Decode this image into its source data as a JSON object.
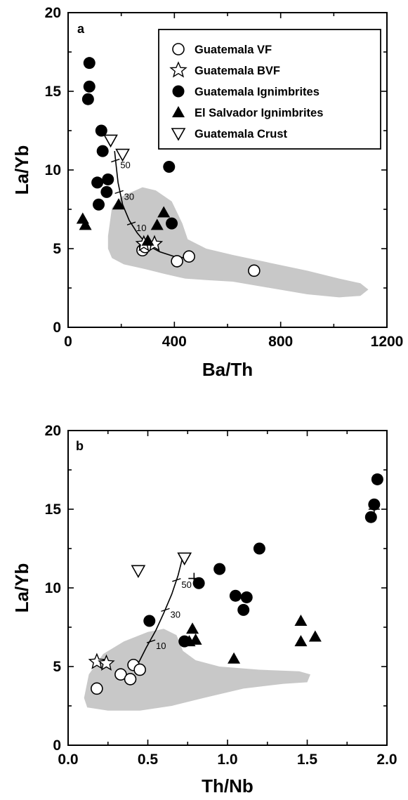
{
  "chart_data": [
    {
      "type": "scatter",
      "panel_label": "a",
      "xlabel": "Ba/Th",
      "ylabel": "La/Yb",
      "xlim": [
        0,
        1200
      ],
      "ylim": [
        0,
        20
      ],
      "xticks": [
        0,
        400,
        800,
        1200
      ],
      "xtick_labels": [
        "0",
        "400",
        "800",
        "1200"
      ],
      "yticks": [
        0,
        5,
        10,
        15,
        20
      ],
      "ytick_labels": [
        "0",
        "5",
        "10",
        "15",
        "20"
      ],
      "legend_position": "top-right",
      "legend": [
        {
          "marker": "open-circle",
          "label": "Guatemala VF"
        },
        {
          "marker": "open-star",
          "label": "Guatemala BVF"
        },
        {
          "marker": "filled-circle",
          "label": "Guatemala Ignimbrites"
        },
        {
          "marker": "filled-triangle",
          "label": "El Salvador Ignimbrites"
        },
        {
          "marker": "open-triangle-down",
          "label": "Guatemala Crust"
        }
      ],
      "series": [
        {
          "name": "Guatemala VF",
          "marker": "open-circle",
          "points": [
            [
              280,
              4.9
            ],
            [
              290,
              5.1
            ],
            [
              410,
              4.2
            ],
            [
              455,
              4.5
            ],
            [
              700,
              3.6
            ]
          ]
        },
        {
          "name": "Guatemala BVF",
          "marker": "open-star",
          "points": [
            [
              285,
              5.3
            ],
            [
              325,
              5.3
            ]
          ]
        },
        {
          "name": "Guatemala Ignimbrites",
          "marker": "filled-circle",
          "points": [
            [
              80,
              16.8
            ],
            [
              80,
              15.3
            ],
            [
              75,
              14.5
            ],
            [
              125,
              12.5
            ],
            [
              130,
              11.2
            ],
            [
              110,
              9.2
            ],
            [
              150,
              9.4
            ],
            [
              145,
              8.6
            ],
            [
              115,
              7.8
            ],
            [
              380,
              10.2
            ],
            [
              390,
              6.6
            ]
          ]
        },
        {
          "name": "El Salvador Ignimbrites",
          "marker": "filled-triangle",
          "points": [
            [
              55,
              6.9
            ],
            [
              65,
              6.5
            ],
            [
              190,
              7.8
            ],
            [
              300,
              5.5
            ],
            [
              335,
              6.5
            ],
            [
              360,
              7.3
            ]
          ]
        },
        {
          "name": "Guatemala Crust",
          "marker": "open-triangle-down",
          "points": [
            [
              160,
              11.9
            ],
            [
              205,
              11.0
            ]
          ]
        }
      ],
      "mixing_curve": [
        [
          175,
          11.2
        ],
        [
          180,
          10.4
        ],
        [
          188,
          9.2
        ],
        [
          205,
          7.8
        ],
        [
          230,
          6.8
        ],
        [
          260,
          6.0
        ],
        [
          300,
          5.2
        ],
        [
          345,
          4.8
        ],
        [
          400,
          4.5
        ],
        [
          445,
          4.4
        ]
      ],
      "mixing_ticks": [
        {
          "label": "50",
          "point": [
            178,
            10.6
          ]
        },
        {
          "label": "30",
          "point": [
            192,
            8.6
          ]
        },
        {
          "label": "10",
          "point": [
            238,
            6.6
          ]
        }
      ],
      "shaded_field": [
        [
          150,
          5.8
        ],
        [
          165,
          7.6
        ],
        [
          200,
          8.3
        ],
        [
          280,
          8.9
        ],
        [
          330,
          8.7
        ],
        [
          390,
          8.0
        ],
        [
          430,
          6.6
        ],
        [
          450,
          5.6
        ],
        [
          520,
          5.0
        ],
        [
          620,
          4.6
        ],
        [
          760,
          4.1
        ],
        [
          900,
          3.6
        ],
        [
          1020,
          3.1
        ],
        [
          1100,
          2.8
        ],
        [
          1130,
          2.4
        ],
        [
          1100,
          2.0
        ],
        [
          1020,
          1.9
        ],
        [
          900,
          2.1
        ],
        [
          760,
          2.5
        ],
        [
          620,
          2.9
        ],
        [
          520,
          3.0
        ],
        [
          440,
          3.1
        ],
        [
          360,
          3.4
        ],
        [
          290,
          3.7
        ],
        [
          210,
          4.0
        ],
        [
          165,
          4.4
        ],
        [
          150,
          5.0
        ]
      ]
    },
    {
      "type": "scatter",
      "panel_label": "b",
      "xlabel": "Th/Nb",
      "ylabel": "La/Yb",
      "xlim": [
        0,
        2.0
      ],
      "ylim": [
        0,
        20
      ],
      "xticks": [
        0,
        0.5,
        1.0,
        1.5,
        2.0
      ],
      "xtick_labels": [
        "0.0",
        "0.5",
        "1.0",
        "1.5",
        "2.0"
      ],
      "yticks": [
        0,
        5,
        10,
        15,
        20
      ],
      "ytick_labels": [
        "0",
        "5",
        "10",
        "15",
        "20"
      ],
      "series": [
        {
          "name": "Guatemala VF",
          "marker": "open-circle",
          "points": [
            [
              0.18,
              3.6
            ],
            [
              0.33,
              4.5
            ],
            [
              0.39,
              4.2
            ],
            [
              0.41,
              5.1
            ],
            [
              0.45,
              4.8
            ]
          ]
        },
        {
          "name": "Guatemala BVF",
          "marker": "open-star",
          "points": [
            [
              0.18,
              5.3
            ],
            [
              0.24,
              5.2
            ]
          ]
        },
        {
          "name": "Guatemala Ignimbrites",
          "marker": "filled-circle",
          "points": [
            [
              1.94,
              16.9
            ],
            [
              1.92,
              15.3
            ],
            [
              1.9,
              14.5
            ],
            [
              1.2,
              12.5
            ],
            [
              0.95,
              11.2
            ],
            [
              0.82,
              10.3
            ],
            [
              1.05,
              9.5
            ],
            [
              1.12,
              9.4
            ],
            [
              1.1,
              8.6
            ],
            [
              0.51,
              7.9
            ],
            [
              0.73,
              6.6
            ]
          ]
        },
        {
          "name": "El Salvador Ignimbrites",
          "marker": "filled-triangle",
          "points": [
            [
              0.78,
              7.4
            ],
            [
              0.76,
              6.6
            ],
            [
              0.8,
              6.7
            ],
            [
              1.04,
              5.5
            ],
            [
              1.46,
              7.9
            ],
            [
              1.46,
              6.6
            ],
            [
              1.55,
              6.9
            ]
          ]
        },
        {
          "name": "Guatemala Crust",
          "marker": "open-triangle-down",
          "points": [
            [
              0.44,
              11.1
            ],
            [
              0.73,
              11.9
            ]
          ]
        }
      ],
      "plus_markers": [
        [
          0.79,
          10.6
        ],
        [
          1.92,
          15.0
        ]
      ],
      "mixing_curve": [
        [
          0.44,
          5.2
        ],
        [
          0.49,
          6.2
        ],
        [
          0.55,
          7.3
        ],
        [
          0.6,
          8.4
        ],
        [
          0.65,
          9.6
        ],
        [
          0.69,
          10.8
        ],
        [
          0.72,
          12.0
        ]
      ],
      "mixing_ticks": [
        {
          "label": "50",
          "point": [
            0.68,
            10.5
          ]
        },
        {
          "label": "30",
          "point": [
            0.61,
            8.6
          ]
        },
        {
          "label": "10",
          "point": [
            0.52,
            6.6
          ]
        }
      ],
      "shaded_field": [
        [
          0.1,
          3.0
        ],
        [
          0.13,
          4.5
        ],
        [
          0.22,
          5.8
        ],
        [
          0.35,
          6.6
        ],
        [
          0.5,
          7.2
        ],
        [
          0.6,
          7.4
        ],
        [
          0.68,
          7.0
        ],
        [
          0.72,
          6.0
        ],
        [
          0.8,
          5.4
        ],
        [
          0.95,
          5.0
        ],
        [
          1.2,
          4.8
        ],
        [
          1.45,
          4.7
        ],
        [
          1.52,
          4.5
        ],
        [
          1.5,
          4.0
        ],
        [
          1.35,
          3.9
        ],
        [
          1.1,
          3.6
        ],
        [
          0.85,
          3.0
        ],
        [
          0.65,
          2.5
        ],
        [
          0.45,
          2.2
        ],
        [
          0.25,
          2.2
        ],
        [
          0.12,
          2.4
        ]
      ]
    }
  ]
}
